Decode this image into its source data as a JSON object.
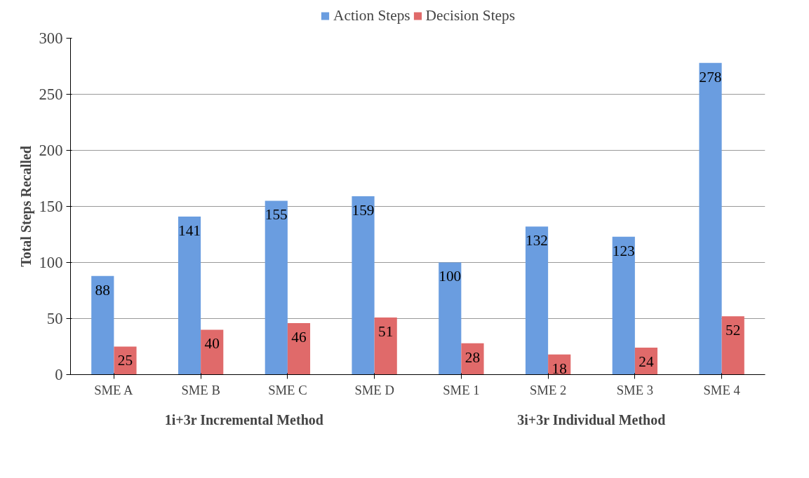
{
  "chart_data": {
    "type": "bar",
    "ylabel": "Total Steps Recalled",
    "categories": [
      "SME A",
      "SME B",
      "SME C",
      "SME D",
      "SME 1",
      "SME 2",
      "SME 3",
      "SME 4"
    ],
    "series": [
      {
        "name": "Action Steps",
        "color": "#6a9de0",
        "values": [
          88,
          141,
          155,
          159,
          100,
          132,
          123,
          278
        ]
      },
      {
        "name": "Decision Steps",
        "color": "#e06a6a",
        "values": [
          25,
          40,
          46,
          51,
          28,
          18,
          24,
          52
        ]
      }
    ],
    "ylim": [
      0,
      300
    ],
    "yticks": [
      0,
      50,
      100,
      150,
      200,
      250,
      300
    ],
    "grid": "y",
    "legend": "top",
    "data_labels": true,
    "annotations": [
      "1i+3r Incremental Method",
      "3i+3r Individual Method"
    ]
  }
}
